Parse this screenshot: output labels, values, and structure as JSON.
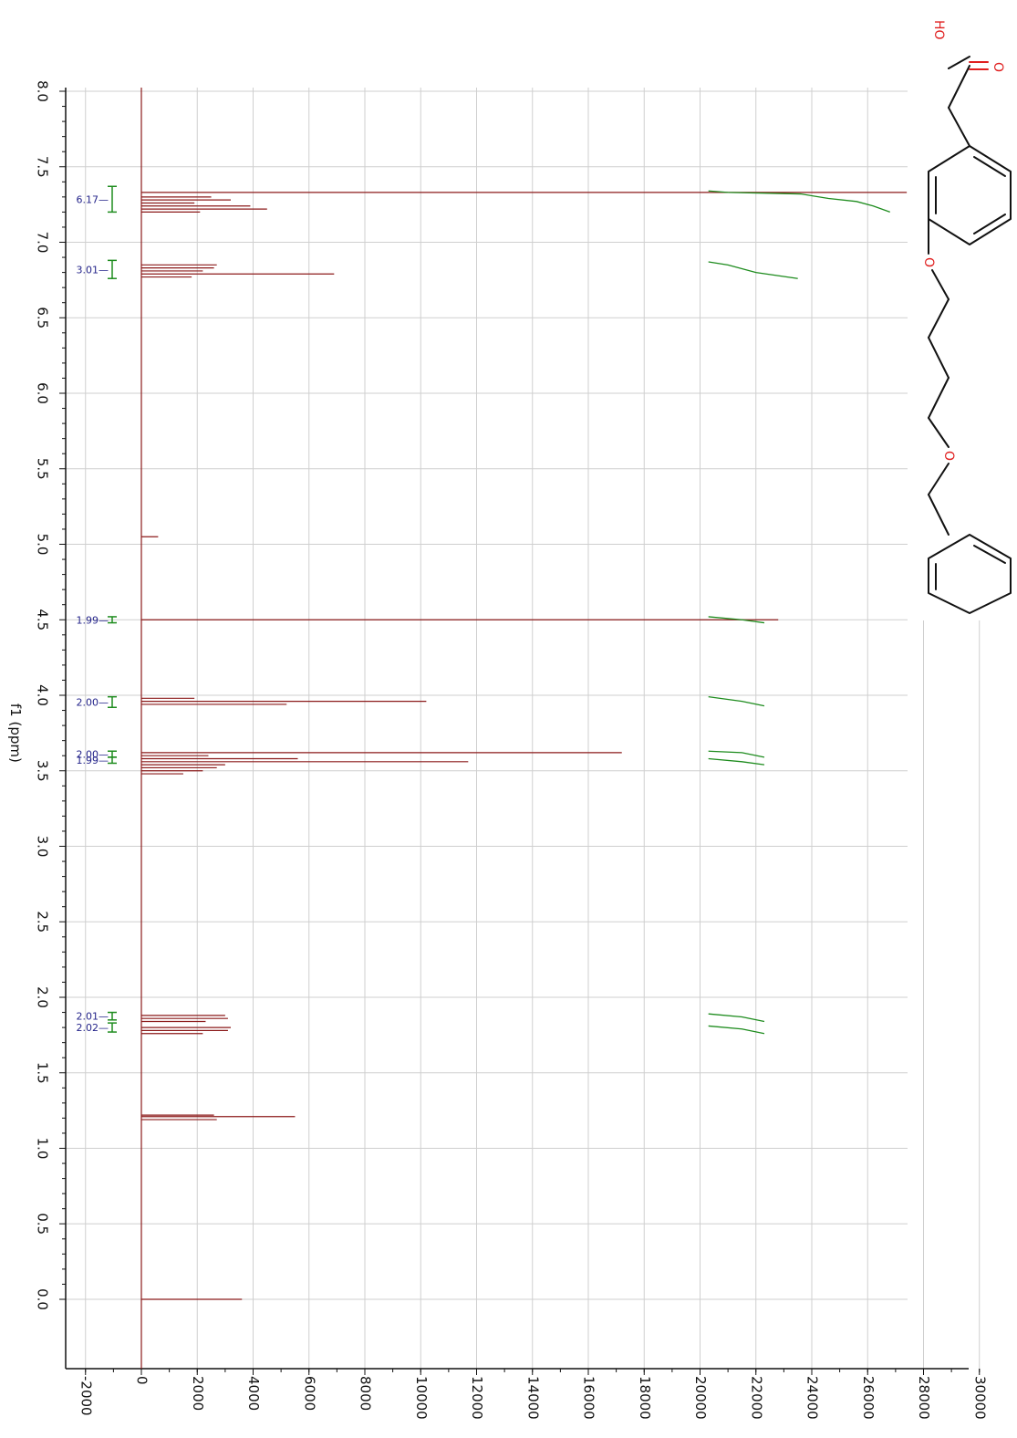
{
  "chart_data": {
    "type": "line",
    "xlabel": "f1 (ppm)",
    "x_ticks": [
      "0.0",
      "0.5",
      "1.0",
      "1.5",
      "2.0",
      "2.5",
      "3.0",
      "3.5",
      "4.0",
      "4.5",
      "5.0",
      "5.5",
      "6.0",
      "6.5",
      "7.0",
      "7.5",
      "8.0"
    ],
    "y_ticks": [
      "-2000",
      "0",
      "2000",
      "4000",
      "6000",
      "8000",
      "10000",
      "12000",
      "14000",
      "16000",
      "18000",
      "20000",
      "22000",
      "24000",
      "26000",
      "28000",
      "30000"
    ],
    "xlim": [
      -0.45,
      8.0
    ],
    "ylim": [
      -2000,
      30000
    ],
    "grid": true,
    "orientation": "rotated",
    "colors": {
      "spectrum": "#8b1a1a",
      "integral": "#1e8c1e",
      "integral_label": "#24248a",
      "atom": "#e02020",
      "grid": "#cfcfcf"
    },
    "peaks": [
      {
        "ppm": 7.33,
        "intensity": 27400
      },
      {
        "ppm": 7.3,
        "intensity": 2500
      },
      {
        "ppm": 7.28,
        "intensity": 3200
      },
      {
        "ppm": 7.26,
        "intensity": 1900
      },
      {
        "ppm": 7.24,
        "intensity": 3900
      },
      {
        "ppm": 7.22,
        "intensity": 4500
      },
      {
        "ppm": 7.2,
        "intensity": 2100
      },
      {
        "ppm": 6.85,
        "intensity": 2700
      },
      {
        "ppm": 6.83,
        "intensity": 2600
      },
      {
        "ppm": 6.81,
        "intensity": 2200
      },
      {
        "ppm": 6.79,
        "intensity": 6900
      },
      {
        "ppm": 6.77,
        "intensity": 1800
      },
      {
        "ppm": 5.05,
        "intensity": 600
      },
      {
        "ppm": 4.5,
        "intensity": 22800
      },
      {
        "ppm": 3.98,
        "intensity": 1900
      },
      {
        "ppm": 3.96,
        "intensity": 10200
      },
      {
        "ppm": 3.94,
        "intensity": 5200
      },
      {
        "ppm": 3.62,
        "intensity": 17200
      },
      {
        "ppm": 3.6,
        "intensity": 2400
      },
      {
        "ppm": 3.58,
        "intensity": 5600
      },
      {
        "ppm": 3.56,
        "intensity": 11700
      },
      {
        "ppm": 3.54,
        "intensity": 3000
      },
      {
        "ppm": 3.52,
        "intensity": 2700
      },
      {
        "ppm": 3.5,
        "intensity": 2200
      },
      {
        "ppm": 3.48,
        "intensity": 1500
      },
      {
        "ppm": 1.88,
        "intensity": 3000
      },
      {
        "ppm": 1.86,
        "intensity": 3100
      },
      {
        "ppm": 1.84,
        "intensity": 2300
      },
      {
        "ppm": 1.8,
        "intensity": 3200
      },
      {
        "ppm": 1.78,
        "intensity": 3100
      },
      {
        "ppm": 1.76,
        "intensity": 2200
      },
      {
        "ppm": 1.22,
        "intensity": 2600
      },
      {
        "ppm": 1.21,
        "intensity": 5500
      },
      {
        "ppm": 1.19,
        "intensity": 2700
      },
      {
        "ppm": 0.0,
        "intensity": 3600
      }
    ],
    "integrals": [
      {
        "label": "6.17",
        "from": 7.2,
        "to": 7.37,
        "curve_ppm": [
          7.34,
          7.33,
          7.32,
          7.29,
          7.27,
          7.24,
          7.2
        ],
        "curve_y": [
          20300,
          21000,
          23600,
          24600,
          25600,
          26200,
          26800
        ]
      },
      {
        "label": "3.01",
        "from": 6.76,
        "to": 6.88,
        "curve_ppm": [
          6.87,
          6.85,
          6.8,
          6.76
        ],
        "curve_y": [
          20300,
          21000,
          22000,
          23500
        ]
      },
      {
        "label": "1.99",
        "from": 4.48,
        "to": 4.52,
        "curve_ppm": [
          4.52,
          4.5,
          4.48
        ],
        "curve_y": [
          20300,
          21500,
          22300
        ]
      },
      {
        "label": "2.00",
        "from": 3.92,
        "to": 3.99,
        "curve_ppm": [
          3.99,
          3.96,
          3.93
        ],
        "curve_y": [
          20300,
          21500,
          22300
        ]
      },
      {
        "label": "2.00",
        "from": 3.59,
        "to": 3.63,
        "curve_ppm": [
          3.63,
          3.62,
          3.59
        ],
        "curve_y": [
          20300,
          21500,
          22300
        ]
      },
      {
        "label": "1.99",
        "from": 3.55,
        "to": 3.59,
        "curve_ppm": [
          3.58,
          3.56,
          3.54
        ],
        "curve_y": [
          20300,
          21500,
          22300
        ]
      },
      {
        "label": "2.01",
        "from": 1.85,
        "to": 1.9,
        "curve_ppm": [
          1.89,
          1.87,
          1.84
        ],
        "curve_y": [
          20300,
          21500,
          22300
        ]
      },
      {
        "label": "2.02",
        "from": 1.77,
        "to": 1.83,
        "curve_ppm": [
          1.81,
          1.79,
          1.76
        ],
        "curve_y": [
          20300,
          21500,
          22300
        ]
      }
    ]
  },
  "structure": {
    "atoms": {
      "hydroxyl": "HO",
      "carbonyl_oxygen": "O",
      "ether_oxygen_1": "O",
      "ether_oxygen_2": "O"
    }
  }
}
